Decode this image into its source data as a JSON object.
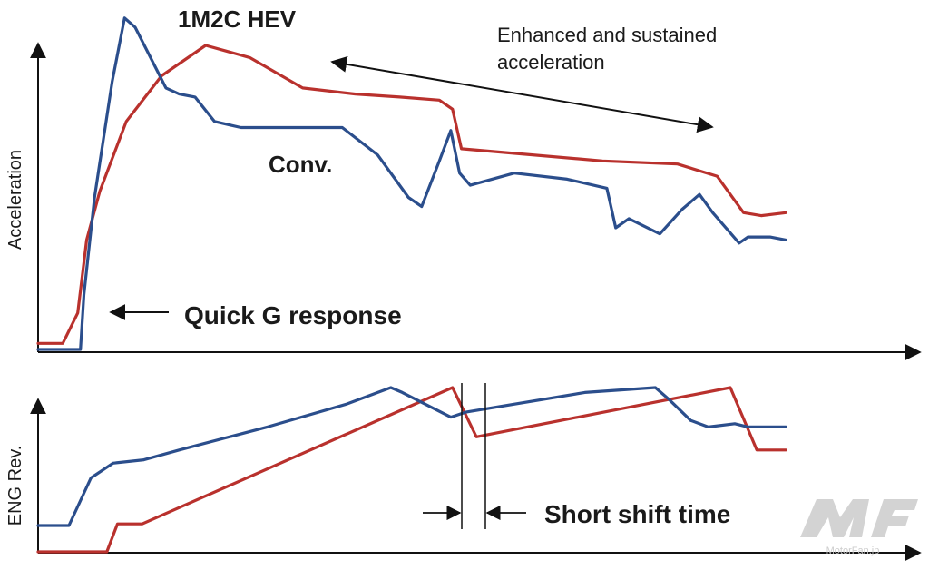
{
  "chart_data": [
    {
      "type": "line",
      "ylabel": "Acceleration",
      "xlabel": "",
      "x_domain": [
        0,
        1000
      ],
      "y_domain": [
        0,
        100
      ],
      "series": [
        {
          "name": "1M2C HEV",
          "color": "#b9312d",
          "points": [
            [
              0,
              2
            ],
            [
              28,
              2
            ],
            [
              45,
              12
            ],
            [
              55,
              36
            ],
            [
              70,
              52
            ],
            [
              100,
              75
            ],
            [
              140,
              90
            ],
            [
              190,
              100
            ],
            [
              240,
              96
            ],
            [
              300,
              86
            ],
            [
              360,
              84
            ],
            [
              410,
              83
            ],
            [
              455,
              82
            ],
            [
              470,
              79
            ],
            [
              480,
              66
            ],
            [
              640,
              62
            ],
            [
              725,
              61
            ],
            [
              770,
              57
            ],
            [
              800,
              45
            ],
            [
              820,
              44
            ],
            [
              848,
              45
            ]
          ]
        },
        {
          "name": "Conv.",
          "color": "#2b4e8c",
          "points": [
            [
              0,
              0
            ],
            [
              48,
              0
            ],
            [
              52,
              18
            ],
            [
              64,
              50
            ],
            [
              84,
              88
            ],
            [
              98,
              109
            ],
            [
              110,
              106
            ],
            [
              145,
              86
            ],
            [
              160,
              84
            ],
            [
              178,
              83
            ],
            [
              200,
              75
            ],
            [
              230,
              73
            ],
            [
              260,
              73
            ],
            [
              300,
              73
            ],
            [
              345,
              73
            ],
            [
              385,
              64
            ],
            [
              420,
              50
            ],
            [
              435,
              47
            ],
            [
              455,
              62
            ],
            [
              468,
              72
            ],
            [
              478,
              58
            ],
            [
              490,
              54
            ],
            [
              540,
              58
            ],
            [
              600,
              56
            ],
            [
              645,
              53
            ],
            [
              655,
              40
            ],
            [
              670,
              43
            ],
            [
              705,
              38
            ],
            [
              730,
              46
            ],
            [
              750,
              51
            ],
            [
              765,
              45
            ],
            [
              795,
              35
            ],
            [
              805,
              37
            ],
            [
              830,
              37
            ],
            [
              848,
              36
            ]
          ]
        }
      ],
      "annotations": {
        "hev_label": "1M2C HEV",
        "conv_label": "Conv.",
        "enhanced_line1": "Enhanced and sustained",
        "enhanced_line2": "acceleration",
        "quick_g": "Quick G response"
      }
    },
    {
      "type": "line",
      "ylabel": "ENG Rev.",
      "xlabel": "",
      "x_domain": [
        0,
        1000
      ],
      "y_domain": [
        0,
        100
      ],
      "series": [
        {
          "name": "1M2C HEV",
          "color": "#b9312d",
          "points": [
            [
              0,
              0
            ],
            [
              78,
              0
            ],
            [
              90,
              17
            ],
            [
              118,
              17
            ],
            [
              470,
              100
            ],
            [
              497,
              70
            ],
            [
              785,
              100
            ],
            [
              815,
              62
            ],
            [
              848,
              62
            ]
          ]
        },
        {
          "name": "Conv.",
          "color": "#2b4e8c",
          "points": [
            [
              0,
              16
            ],
            [
              35,
              16
            ],
            [
              60,
              45
            ],
            [
              85,
              54
            ],
            [
              120,
              56
            ],
            [
              160,
              62
            ],
            [
              260,
              76
            ],
            [
              350,
              90
            ],
            [
              400,
              100
            ],
            [
              413,
              97
            ],
            [
              468,
              82
            ],
            [
              485,
              85
            ],
            [
              620,
              97
            ],
            [
              700,
              100
            ],
            [
              715,
              93
            ],
            [
              740,
              80
            ],
            [
              760,
              76
            ],
            [
              790,
              78
            ],
            [
              805,
              76
            ],
            [
              848,
              76
            ]
          ]
        }
      ],
      "annotations": {
        "short_shift": "Short shift time"
      }
    }
  ],
  "watermark": "MotorFan.jp"
}
